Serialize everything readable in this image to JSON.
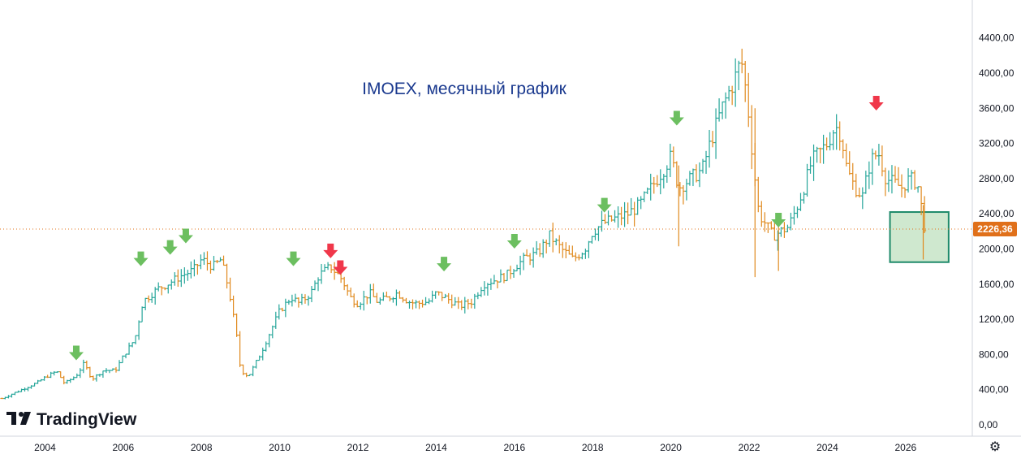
{
  "brand": {
    "logo_text": "TradingView"
  },
  "colors": {
    "up": "#26a69a",
    "down": "#e08a1e",
    "arrow_up_green": "#6cbf60",
    "arrow_down_red": "#f0374a",
    "price_tag": "#e0701a",
    "highlight_fill": "#cfe8cf",
    "highlight_stroke": "#1e8a6a",
    "title": "#1b3a8f"
  },
  "settings_icon": "gear-icon",
  "chart_data": {
    "type": "ohlc",
    "title": "IMOEX, месячный график",
    "xlabel": "",
    "ylabel": "",
    "x_ticks": [
      "2004",
      "2006",
      "2008",
      "2010",
      "2012",
      "2014",
      "2016",
      "2018",
      "2020",
      "2022",
      "2024",
      "2026"
    ],
    "y_ticks": [
      "0,00",
      "400,00",
      "800,00",
      "1200,00",
      "1600,00",
      "2000,00",
      "2400,00",
      "2800,00",
      "3200,00",
      "3600,00",
      "4000,00",
      "4400,00"
    ],
    "ylim": [
      0,
      4600
    ],
    "xlim": [
      2002.85,
      2027.6
    ],
    "last_price": 2226.36,
    "last_price_label": "2226,36",
    "price_scale": "linear",
    "series": [
      {
        "values": [
          [
            2002.9,
            300
          ],
          [
            2003.2,
            360
          ],
          [
            2003.5,
            420
          ],
          [
            2003.8,
            480
          ],
          [
            2004.0,
            540
          ],
          [
            2004.3,
            610
          ],
          [
            2004.5,
            470
          ],
          [
            2004.8,
            560
          ],
          [
            2005.0,
            700
          ],
          [
            2005.2,
            520
          ],
          [
            2005.5,
            620
          ],
          [
            2005.8,
            620
          ],
          [
            2006.0,
            780
          ],
          [
            2006.3,
            980
          ],
          [
            2006.5,
            1400
          ],
          [
            2006.7,
            1480
          ],
          [
            2006.9,
            1550
          ],
          [
            2007.2,
            1620
          ],
          [
            2007.5,
            1700
          ],
          [
            2007.8,
            1760
          ],
          [
            2008.0,
            1880
          ],
          [
            2008.3,
            1800
          ],
          [
            2008.5,
            1880
          ],
          [
            2008.7,
            1540
          ],
          [
            2008.9,
            1000
          ],
          [
            2009.0,
            620
          ],
          [
            2009.2,
            550
          ],
          [
            2009.5,
            800
          ],
          [
            2009.8,
            1100
          ],
          [
            2010.0,
            1300
          ],
          [
            2010.3,
            1450
          ],
          [
            2010.5,
            1380
          ],
          [
            2010.8,
            1500
          ],
          [
            2011.0,
            1700
          ],
          [
            2011.3,
            1800
          ],
          [
            2011.6,
            1650
          ],
          [
            2011.8,
            1450
          ],
          [
            2012.0,
            1380
          ],
          [
            2012.3,
            1500
          ],
          [
            2012.5,
            1400
          ],
          [
            2012.8,
            1450
          ],
          [
            2013.0,
            1500
          ],
          [
            2013.3,
            1400
          ],
          [
            2013.5,
            1380
          ],
          [
            2013.8,
            1400
          ],
          [
            2014.0,
            1500
          ],
          [
            2014.3,
            1430
          ],
          [
            2014.6,
            1350
          ],
          [
            2014.9,
            1400
          ],
          [
            2015.2,
            1600
          ],
          [
            2015.5,
            1650
          ],
          [
            2015.8,
            1700
          ],
          [
            2016.0,
            1800
          ],
          [
            2016.3,
            1900
          ],
          [
            2016.6,
            1950
          ],
          [
            2016.9,
            2150
          ],
          [
            2017.2,
            2000
          ],
          [
            2017.5,
            1880
          ],
          [
            2017.8,
            2000
          ],
          [
            2018.0,
            2200
          ],
          [
            2018.3,
            2300
          ],
          [
            2018.6,
            2350
          ],
          [
            2018.9,
            2400
          ],
          [
            2019.2,
            2500
          ],
          [
            2019.5,
            2700
          ],
          [
            2019.8,
            2900
          ],
          [
            2020.0,
            3050
          ],
          [
            2020.2,
            2700
          ],
          [
            2020.5,
            2800
          ],
          [
            2020.8,
            2900
          ],
          [
            2021.0,
            3200
          ],
          [
            2021.3,
            3600
          ],
          [
            2021.6,
            3900
          ],
          [
            2021.8,
            4150
          ],
          [
            2021.95,
            3700
          ],
          [
            2022.1,
            3000
          ],
          [
            2022.25,
            2400
          ],
          [
            2022.4,
            2300
          ],
          [
            2022.6,
            2150
          ],
          [
            2022.8,
            2200
          ],
          [
            2023.0,
            2250
          ],
          [
            2023.2,
            2450
          ],
          [
            2023.4,
            2700
          ],
          [
            2023.6,
            3000
          ],
          [
            2023.8,
            3100
          ],
          [
            2024.0,
            3200
          ],
          [
            2024.2,
            3400
          ],
          [
            2024.35,
            3300
          ],
          [
            2024.5,
            2900
          ],
          [
            2024.7,
            2700
          ],
          [
            2024.9,
            2600
          ],
          [
            2025.1,
            3000
          ],
          [
            2025.3,
            3100
          ],
          [
            2025.5,
            2800
          ],
          [
            2025.7,
            2750
          ],
          [
            2025.9,
            2700
          ],
          [
            2026.1,
            2800
          ],
          [
            2026.3,
            2750
          ],
          [
            2026.5,
            2226
          ]
        ]
      }
    ],
    "annotations": {
      "up_arrows": [
        [
          2004.8,
          790
        ],
        [
          2006.45,
          1860
        ],
        [
          2007.2,
          1990
        ],
        [
          2007.6,
          2120
        ],
        [
          2010.35,
          1860
        ],
        [
          2014.2,
          1800
        ],
        [
          2016.0,
          2060
        ],
        [
          2018.3,
          2470
        ],
        [
          2020.15,
          3460
        ],
        [
          2022.75,
          2300
        ]
      ],
      "down_arrows": [
        [
          2011.3,
          1950
        ],
        [
          2011.55,
          1760
        ],
        [
          2025.25,
          3630
        ]
      ],
      "highlight_box": {
        "x0": 2025.6,
        "x1": 2027.1,
        "y0": 1850,
        "y1": 2420
      }
    }
  }
}
